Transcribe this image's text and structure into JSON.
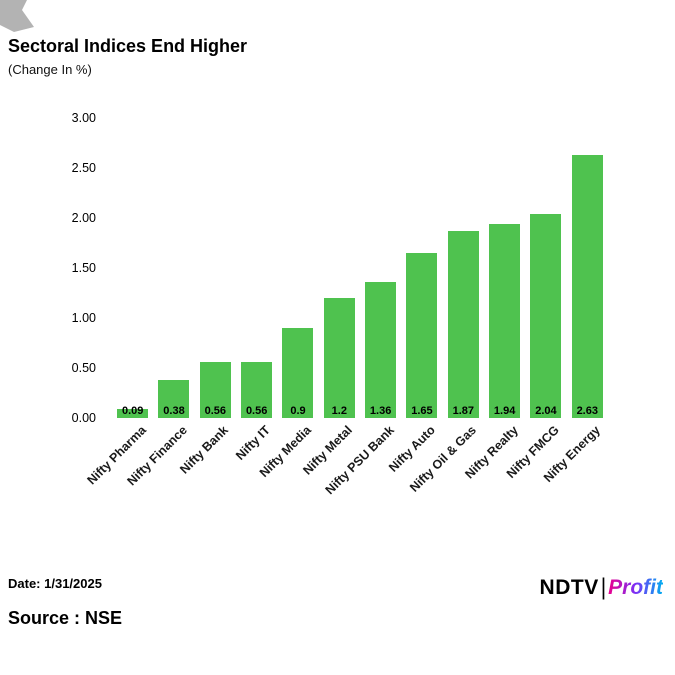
{
  "header": {
    "title": "Sectoral Indices End Higher",
    "subtitle": "(Change In %)"
  },
  "chart_data": {
    "type": "bar",
    "title": "Sectoral Indices End Higher",
    "subtitle": "(Change In %)",
    "categories": [
      "Nifty Pharma",
      "Nifty Finance",
      "Nifty Bank",
      "Nifty IT",
      "Nifty Media",
      "Nifty Metal",
      "Nifty PSU Bank",
      "Nifty Auto",
      "Nifty Oil & Gas",
      "Nifty Realty",
      "Nifty FMCG",
      "Nifty Energy"
    ],
    "values": [
      0.09,
      0.38,
      0.56,
      0.56,
      0.9,
      1.2,
      1.36,
      1.65,
      1.87,
      1.94,
      2.04,
      2.63
    ],
    "value_labels": [
      "0.09",
      "0.38",
      "0.56",
      "0.56",
      "0.9",
      "1.2",
      "1.36",
      "1.65",
      "1.87",
      "1.94",
      "2.04",
      "2.63"
    ],
    "xlabel": "",
    "ylabel": "",
    "ylim": [
      0,
      3
    ],
    "yticks": [
      "3.00",
      "2.50",
      "2.00",
      "1.50",
      "1.00",
      "0.50",
      "0.00"
    ],
    "bar_color": "#4fc24f",
    "grid": false,
    "legend": "none"
  },
  "footer": {
    "date_label": "Date: 1/31/2025",
    "source_label": "Source : NSE"
  },
  "logo": {
    "ndtv": "NDTV",
    "separator": "|",
    "profit": "Profit",
    "colors": {
      "profit_start": "#ec008c",
      "profit_end": "#00aeef"
    }
  }
}
